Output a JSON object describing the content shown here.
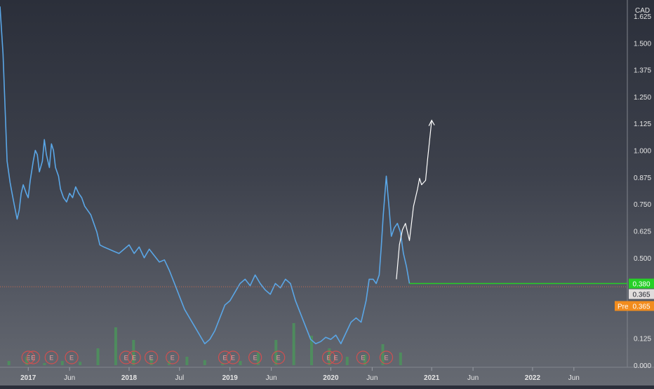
{
  "chart_data": {
    "type": "line",
    "title": "",
    "currency": "CAD",
    "series_color": "#5aa6e6",
    "y_ticks": [
      0.0,
      0.125,
      0.25,
      0.375,
      0.5,
      0.625,
      0.75,
      0.875,
      1.0,
      1.125,
      1.25,
      1.375,
      1.5,
      1.625
    ],
    "y_tick_labels": [
      "0.000",
      "0.125",
      "",
      "",
      "0.500",
      "0.625",
      "0.750",
      "0.875",
      "1.000",
      "1.125",
      "1.250",
      "1.375",
      "1.500",
      "1.625"
    ],
    "ylim": [
      0,
      1.7
    ],
    "x_ticks": [
      {
        "label": "2017",
        "year": 2017.0,
        "bold": true
      },
      {
        "label": "Jun",
        "year": 2017.41,
        "bold": false
      },
      {
        "label": "2018",
        "year": 2018.0,
        "bold": true
      },
      {
        "label": "Jul",
        "year": 2018.5,
        "bold": false
      },
      {
        "label": "2019",
        "year": 2019.0,
        "bold": true
      },
      {
        "label": "Jun",
        "year": 2019.41,
        "bold": false
      },
      {
        "label": "2020",
        "year": 2020.0,
        "bold": true
      },
      {
        "label": "Jun",
        "year": 2020.41,
        "bold": false
      },
      {
        "label": "2021",
        "year": 2021.0,
        "bold": true
      },
      {
        "label": "Jun",
        "year": 2021.41,
        "bold": false
      },
      {
        "label": "2022",
        "year": 2022.0,
        "bold": true
      },
      {
        "label": "Jun",
        "year": 2022.41,
        "bold": false
      }
    ],
    "xlim": [
      2016.72,
      2022.94
    ],
    "series": [
      {
        "x": [
          2016.72,
          2016.75,
          2016.77,
          2016.79,
          2016.82,
          2016.84,
          2016.86,
          2016.89,
          2016.91,
          2016.93,
          2016.95,
          2016.98,
          2017.0,
          2017.02,
          2017.05,
          2017.07,
          2017.09,
          2017.11,
          2017.14,
          2017.16,
          2017.18,
          2017.21,
          2017.23,
          2017.25,
          2017.27,
          2017.3,
          2017.32,
          2017.35,
          2017.38,
          2017.41,
          2017.44,
          2017.47,
          2017.5,
          2017.53,
          2017.56,
          2017.59,
          2017.62,
          2017.65,
          2017.68,
          2017.71,
          2017.75,
          2017.8,
          2017.85,
          2017.9,
          2017.95,
          2018.0,
          2018.05,
          2018.1,
          2018.15,
          2018.2,
          2018.25,
          2018.3,
          2018.35,
          2018.4,
          2018.45,
          2018.5,
          2018.55,
          2018.6,
          2018.65,
          2018.7,
          2018.75,
          2018.8,
          2018.85,
          2018.9,
          2018.95,
          2019.0,
          2019.05,
          2019.1,
          2019.15,
          2019.2,
          2019.25,
          2019.3,
          2019.35,
          2019.4,
          2019.45,
          2019.5,
          2019.55,
          2019.6,
          2019.65,
          2019.7,
          2019.75,
          2019.8,
          2019.85,
          2019.9,
          2019.95,
          2020.0,
          2020.05,
          2020.1,
          2020.15,
          2020.2,
          2020.25,
          2020.3,
          2020.35,
          2020.38,
          2020.42,
          2020.45,
          2020.48,
          2020.5,
          2020.52,
          2020.55,
          2020.58,
          2020.6,
          2020.63,
          2020.66,
          2020.69,
          2020.72,
          2020.75,
          2020.78
        ],
        "y": [
          1.67,
          1.45,
          1.2,
          0.95,
          0.85,
          0.8,
          0.75,
          0.68,
          0.72,
          0.8,
          0.84,
          0.8,
          0.78,
          0.86,
          0.95,
          1.0,
          0.98,
          0.9,
          0.95,
          1.05,
          0.98,
          0.92,
          1.03,
          1.0,
          0.92,
          0.88,
          0.82,
          0.78,
          0.76,
          0.8,
          0.78,
          0.83,
          0.8,
          0.78,
          0.74,
          0.72,
          0.7,
          0.66,
          0.62,
          0.56,
          0.55,
          0.54,
          0.53,
          0.52,
          0.54,
          0.56,
          0.52,
          0.55,
          0.5,
          0.54,
          0.51,
          0.48,
          0.49,
          0.44,
          0.38,
          0.32,
          0.26,
          0.22,
          0.18,
          0.14,
          0.1,
          0.12,
          0.16,
          0.22,
          0.28,
          0.3,
          0.34,
          0.38,
          0.4,
          0.37,
          0.42,
          0.38,
          0.35,
          0.33,
          0.38,
          0.36,
          0.4,
          0.38,
          0.3,
          0.24,
          0.18,
          0.12,
          0.1,
          0.11,
          0.13,
          0.12,
          0.14,
          0.1,
          0.15,
          0.2,
          0.22,
          0.2,
          0.3,
          0.4,
          0.4,
          0.38,
          0.42,
          0.55,
          0.7,
          0.88,
          0.72,
          0.6,
          0.64,
          0.66,
          0.62,
          0.52,
          0.46,
          0.38
        ]
      }
    ],
    "volume_color": "#4a9a5a",
    "volume": [
      0.1,
      0.2,
      0.05,
      0.1,
      0.08,
      0.4,
      0.9,
      0.6,
      0.15,
      0.1,
      0.2,
      0.12,
      0.05,
      0.1,
      0.3,
      0.6,
      1.0,
      0.7,
      0.4,
      0.2,
      0.25,
      0.5,
      0.3
    ],
    "earnings_marker": "E",
    "earnings_dates": [
      2017.0,
      2017.05,
      2017.23,
      2017.43,
      2017.97,
      2018.05,
      2018.22,
      2018.43,
      2018.95,
      2019.03,
      2019.25,
      2019.48,
      2019.98,
      2020.05,
      2020.32,
      2020.55
    ],
    "price_lines": [
      {
        "value": 0.38,
        "label": "0.380",
        "color": "#26d026",
        "style": "solid"
      },
      {
        "value": 0.365,
        "label": "0.365",
        "color": "#e0dcdc",
        "style": "plain"
      },
      {
        "value": 0.365,
        "label": "0.365",
        "tag": "Pre",
        "color": "#f28c1d",
        "style": "orange"
      }
    ],
    "prev_close_line": {
      "value": 0.365,
      "color": "#c86a50"
    },
    "projection_arrow": {
      "x": [
        2020.65,
        2020.68,
        2020.71,
        2020.74,
        2020.78,
        2020.82,
        2020.86,
        2020.88,
        2020.9,
        2020.94,
        2020.96,
        2021.0
      ],
      "y": [
        0.4,
        0.56,
        0.63,
        0.66,
        0.58,
        0.74,
        0.82,
        0.87,
        0.84,
        0.86,
        0.96,
        1.14
      ]
    }
  }
}
